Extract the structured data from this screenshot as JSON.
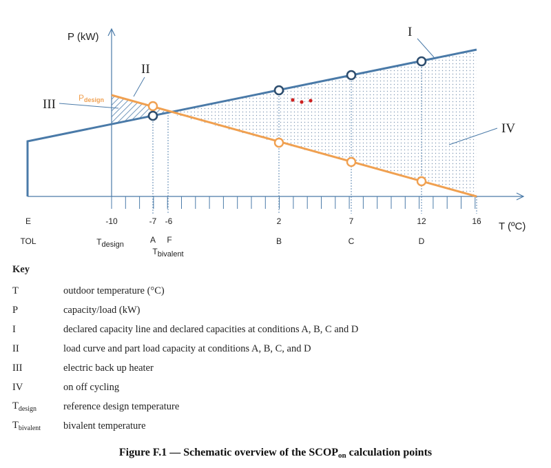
{
  "diagram": {
    "y_axis_label": "P (kW)",
    "x_axis_label": "T (ºC)",
    "p_design_label": "P",
    "p_design_sub": "design",
    "ticks": [
      {
        "value": "E"
      },
      {
        "value": "-10"
      },
      {
        "value": "-7"
      },
      {
        "value": "-6"
      },
      {
        "value": "2"
      },
      {
        "value": "7"
      },
      {
        "value": "12"
      },
      {
        "value": "16"
      }
    ],
    "points": {
      "tol": "TOL",
      "tdesign": "T",
      "tdesign_sub": "design",
      "a": "A",
      "f": "F",
      "tbivalent": "T",
      "tbivalent_sub": "bivalent",
      "b": "B",
      "c": "C",
      "d": "D"
    },
    "callouts": {
      "i": "I",
      "ii": "II",
      "iii": "III",
      "iv": "IV"
    },
    "colors": {
      "capacity_line": "#4a7aa8",
      "load_line": "#f0a050",
      "marker_outline": "#2d4d6e",
      "dots": "#cc2222"
    }
  },
  "key": {
    "heading": "Key",
    "items": [
      {
        "symbol": "T",
        "sub": "",
        "description": "outdoor temperature (°C)"
      },
      {
        "symbol": "P",
        "sub": "",
        "description": "capacity/load (kW)"
      },
      {
        "symbol": "I",
        "sub": "",
        "description": "declared capacity line and declared capacities at conditions A, B, C and D"
      },
      {
        "symbol": "II",
        "sub": "",
        "description": "load curve and part load capacity at conditions A, B, C, and D"
      },
      {
        "symbol": "III",
        "sub": "",
        "description": "electric back up heater"
      },
      {
        "symbol": "IV",
        "sub": "",
        "description": "on off cycling"
      },
      {
        "symbol": "T",
        "sub": "design",
        "description": "reference design temperature"
      },
      {
        "symbol": "T",
        "sub": "bivalent",
        "description": "bivalent temperature"
      }
    ]
  },
  "caption": {
    "prefix": "Figure F.1 — Schematic overview of the SCOP",
    "sub": "on",
    "suffix": " calculation points"
  }
}
